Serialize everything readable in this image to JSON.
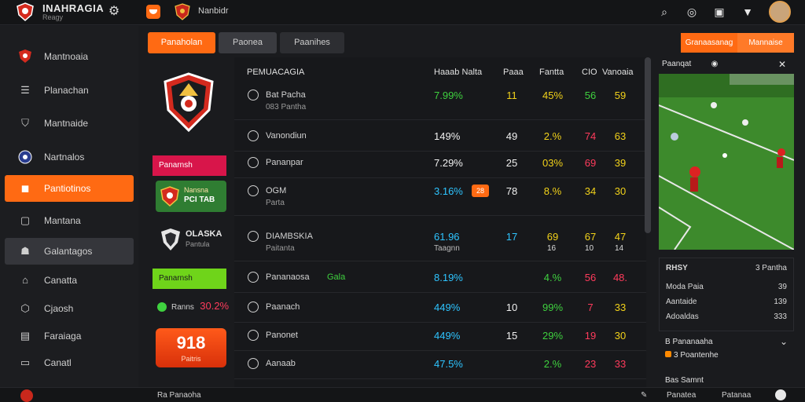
{
  "app": {
    "title": "INAHRAGIA",
    "subtitle": "Reagy",
    "team_name": "Nanbidr"
  },
  "colors": {
    "accent": "#ff6a13",
    "green": "#3fd13f",
    "yellow": "#f2d21a",
    "red": "#ff3b5c",
    "cyan": "#2ec4ff"
  },
  "topbar_icons": [
    "search-icon",
    "target-icon",
    "clipboard-icon",
    "badge-icon"
  ],
  "sidebar": {
    "items": [
      {
        "label": "Mantnoaia",
        "icon": "club-icon"
      },
      {
        "label": "Planachan",
        "icon": "database-icon"
      },
      {
        "label": "Mantnaide",
        "icon": "shield-icon"
      },
      {
        "label": "Nartnalos",
        "icon": "badge-icon"
      },
      {
        "label": "Pantiotinos",
        "icon": "chat-icon"
      },
      {
        "label": "Mantana",
        "icon": "square-icon"
      },
      {
        "label": "Galantagos",
        "icon": "people-icon"
      },
      {
        "label": "Canatta",
        "icon": "home-icon"
      },
      {
        "label": "Cjaosh",
        "icon": "cube-icon"
      },
      {
        "label": "Faraiaga",
        "icon": "doc-icon"
      },
      {
        "label": "Canatl",
        "icon": "box-icon"
      }
    ]
  },
  "tabs": [
    {
      "label": "Panaholan"
    },
    {
      "label": "Paonea"
    },
    {
      "label": "Paanihes"
    }
  ],
  "left_panel": {
    "label1": "Panarnsh",
    "team_card_t1": "Nansna",
    "team_card_t2": "PCI TAB",
    "club_name": "OLASKA",
    "club_sub": "Pantula",
    "label2": "Panarnsh",
    "score_row_label": "Ranns",
    "score_row_value": "30.2%",
    "score_card_big": "918",
    "score_card_small": "Paitris"
  },
  "table": {
    "headers": {
      "name": "PEMUACAGIA",
      "c1": "Haaab Nalta",
      "c2": "Paaa",
      "c3": "Fantta",
      "c4": "CIO",
      "c5": "Vanoaia"
    },
    "rows": [
      {
        "icon": "lock-icon",
        "name": "Bat Pacha",
        "sub": "083 Pantha",
        "pct": "7.99%",
        "pct_color": "#3fd13f",
        "c2": "11",
        "c2_color": "#f2d21a",
        "c3": "45%",
        "c3_color": "#f2d21a",
        "c4": "56",
        "c4_color": "#3fd13f",
        "c5": "59",
        "c5_color": "#f2d21a"
      },
      {
        "icon": "info-icon",
        "name": "Vanondiun",
        "sub": "",
        "pct": "149%",
        "pct_color": "#f0f0f0",
        "c2": "49",
        "c2_color": "#f0f0f0",
        "c3": "2.%",
        "c3_color": "#f2d21a",
        "c4": "74",
        "c4_color": "#ff3b5c",
        "c5": "63",
        "c5_color": "#f2d21a"
      },
      {
        "icon": "doc-icon",
        "name": "Pananpar",
        "sub": "",
        "pct": "7.29%",
        "pct_color": "#f0f0f0",
        "c2": "25",
        "c2_color": "#f0f0f0",
        "c3": "03%",
        "c3_color": "#f2d21a",
        "c4": "69",
        "c4_color": "#ff3b5c",
        "c5": "39",
        "c5_color": "#f2d21a"
      },
      {
        "icon": "flag-icon",
        "name": "OGM",
        "sub": "Parta",
        "pct": "3.16%",
        "pct_color": "#2ec4ff",
        "badge": "28",
        "c2": "78",
        "c2_color": "#f0f0f0",
        "c3": "8.%",
        "c3_color": "#f2d21a",
        "c4": "34",
        "c4_color": "#f2d21a",
        "c5": "30",
        "c5_color": "#f2d21a"
      },
      {
        "icon": "club-icon",
        "name": "DIAMBSKIA",
        "sub": "Paitanta",
        "pct": "61.96",
        "pct_color": "#2ec4ff",
        "pct_sub": "Taagnn",
        "c2": "17",
        "c2_color": "#2ec4ff",
        "c3": "69",
        "c3_color": "#f2d21a",
        "c3_sub": "16",
        "c4": "67",
        "c4_color": "#f2d21a",
        "c4_sub": "10",
        "c5": "47",
        "c5_color": "#f2d21a",
        "c5_sub": "14"
      },
      {
        "icon": "check-icon",
        "name": "Pananaosa",
        "sub": "",
        "tag": "Gala",
        "pct": "8.19%",
        "pct_color": "#2ec4ff",
        "c2": "",
        "c2_color": "#f0f0f0",
        "c3": "4.%",
        "c3_color": "#3fd13f",
        "c4": "56",
        "c4_color": "#ff3b5c",
        "c5": "48.",
        "c5_color": "#ff3b5c"
      },
      {
        "icon": "flag-icon",
        "name": "Paanach",
        "sub": "",
        "pct": "449%",
        "pct_color": "#2ec4ff",
        "c2": "10",
        "c2_color": "#f0f0f0",
        "c3": "99%",
        "c3_color": "#3fd13f",
        "c4": "7",
        "c4_color": "#ff3b5c",
        "c5": "33",
        "c5_color": "#f2d21a"
      },
      {
        "icon": "flag-icon",
        "name": "Panonet",
        "sub": "",
        "pct": "449%",
        "pct_color": "#2ec4ff",
        "c2": "15",
        "c2_color": "#f0f0f0",
        "c3": "29%",
        "c3_color": "#3fd13f",
        "c4": "19",
        "c4_color": "#ff3b5c",
        "c5": "30",
        "c5_color": "#f2d21a"
      },
      {
        "icon": "person-icon",
        "name": "Aanaab",
        "sub": "",
        "pct": "47.5%",
        "pct_color": "#2ec4ff",
        "c2": "",
        "c2_color": "#f0f0f0",
        "c3": "2.%",
        "c3_color": "#3fd13f",
        "c4": "23",
        "c4_color": "#ff3b5c",
        "c5": "33",
        "c5_color": "#ff3b5c"
      }
    ]
  },
  "right_panel": {
    "btn1": "Granaasanag",
    "btn2": "Mannaise",
    "video_title": "Paanqat",
    "stats_title": "RHSY",
    "stats_title_val": "3 Pantha",
    "stats": [
      {
        "label": "Moda Paia",
        "value": "39"
      },
      {
        "label": "Aantaide",
        "value": "139"
      },
      {
        "label": "Adoaldas",
        "value": "333"
      }
    ],
    "section1_title": "B Pananaaha",
    "section1_sub": "3 Poantenhe",
    "section2_title": "Bas Samnt",
    "bottom_a": "Panatea",
    "bottom_b": "Patanaa"
  },
  "bottombar": {
    "left_label": "Ra Panaoha"
  }
}
